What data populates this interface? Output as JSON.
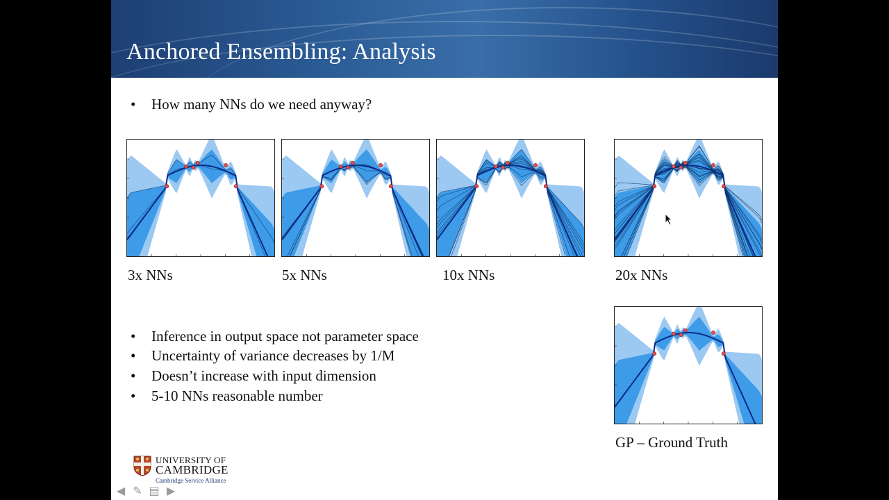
{
  "slide": {
    "title": "Anchored Ensembling: Analysis",
    "intro_bullet": "How many NNs do we need anyway?",
    "panels": [
      {
        "caption": "3x NNs",
        "members": 3
      },
      {
        "caption": "5x NNs",
        "members": 5
      },
      {
        "caption": "10x NNs",
        "members": 10
      },
      {
        "caption": "20x NNs",
        "members": 20
      },
      {
        "caption": "GP – Ground Truth",
        "members": 0
      }
    ],
    "bullets": [
      "Inference in output space not parameter space",
      "Uncertainty of variance decreases by 1/M",
      "Doesn’t increase with input dimension",
      "5-10 NNs reasonable number"
    ],
    "logo": {
      "line1": "UNIVERSITY OF",
      "line2": "CAMBRIDGE",
      "line3": "Cambridge Service Alliance"
    },
    "nav_icons": [
      "arrow-left-icon",
      "pen-icon",
      "notes-icon",
      "arrow-right-icon"
    ]
  },
  "colors": {
    "header": "#2a5a93",
    "band_light": "#9cc9f2",
    "band_mid": "#3d9be8",
    "mean_line": "#0a2a8a",
    "data_point": "#e05050"
  }
}
